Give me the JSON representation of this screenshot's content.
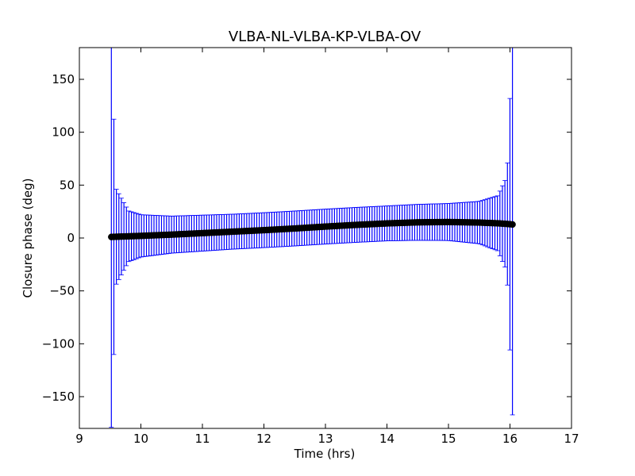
{
  "chart_data": {
    "type": "scatter",
    "title": "VLBA-NL-VLBA-KP-VLBA-OV",
    "xlabel": "Time (hrs)",
    "ylabel": "Closure phase (deg)",
    "xlim": [
      9,
      17
    ],
    "ylim": [
      -180,
      180
    ],
    "xticks": [
      9,
      10,
      11,
      12,
      13,
      14,
      15,
      16,
      17
    ],
    "yticks": [
      -150,
      -100,
      -50,
      0,
      50,
      100,
      150
    ],
    "xtick_labels": [
      "9",
      "10",
      "11",
      "12",
      "13",
      "14",
      "15",
      "16",
      "17"
    ],
    "ytick_labels": [
      "−150",
      "−100",
      "−50",
      "0",
      "50",
      "100",
      "150"
    ],
    "grid": false,
    "series": [
      {
        "marker": "circle",
        "color": "#000000",
        "errorbar_color": "#0000ff",
        "x_start": 9.52,
        "x_end": 16.04,
        "points": [
          {
            "x": 9.52,
            "y": 1.0,
            "err": 180
          },
          {
            "x": 9.6,
            "y": 1.2,
            "err": 45
          },
          {
            "x": 9.8,
            "y": 1.6,
            "err": 24
          },
          {
            "x": 10.0,
            "y": 2.0,
            "err": 20
          },
          {
            "x": 10.5,
            "y": 3.2,
            "err": 17.5
          },
          {
            "x": 11.0,
            "y": 4.6,
            "err": 17
          },
          {
            "x": 11.5,
            "y": 6.0,
            "err": 16.5
          },
          {
            "x": 12.0,
            "y": 7.4,
            "err": 16.5
          },
          {
            "x": 12.5,
            "y": 9.0,
            "err": 16.5
          },
          {
            "x": 13.0,
            "y": 10.8,
            "err": 16.5
          },
          {
            "x": 13.5,
            "y": 12.4,
            "err": 16.5
          },
          {
            "x": 14.0,
            "y": 13.8,
            "err": 16.5
          },
          {
            "x": 14.5,
            "y": 14.8,
            "err": 17
          },
          {
            "x": 15.0,
            "y": 15.1,
            "err": 17.5
          },
          {
            "x": 15.5,
            "y": 14.6,
            "err": 20
          },
          {
            "x": 15.8,
            "y": 13.9,
            "err": 26
          },
          {
            "x": 15.95,
            "y": 13.3,
            "err": 45
          },
          {
            "x": 16.04,
            "y": 12.8,
            "err": 180
          }
        ]
      }
    ]
  }
}
